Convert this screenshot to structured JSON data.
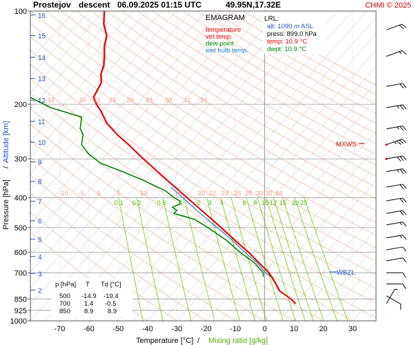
{
  "header": {
    "station": "Prostejov",
    "phase": "descent",
    "datetime": "06.09.2025 01:15 UTC",
    "location": "49.95N,17.32E",
    "credit": "CHMI © 2025"
  },
  "legend": {
    "title": "EMAGRAM",
    "items": [
      {
        "label": "temperature",
        "color": "#e00000"
      },
      {
        "label": "virt.temp.",
        "color": "#e00000"
      },
      {
        "label": "dew point",
        "color": "#008000"
      },
      {
        "label": "wet bulb temp.",
        "color": "#1e7fd0"
      }
    ]
  },
  "lrl": {
    "title": "LRL:",
    "alt": "alt: 1090 m ASL",
    "press": "press: 899.0 hPa",
    "temp": "temp: 10.9 °C",
    "dwpt": "dwpt: 10.9 °C"
  },
  "table": {
    "headers": [
      "p [hPa]",
      "T",
      "Td [°C]"
    ],
    "rows": [
      [
        "500",
        "-14.9",
        "-19.4"
      ],
      [
        "700",
        "1.4",
        "-0.5"
      ],
      [
        "850",
        "8.9",
        "8.9"
      ]
    ]
  },
  "markers": {
    "mxws": "MXWS",
    "wbzl": "WBZL"
  },
  "colors": {
    "temperature": "#e00000",
    "dewpoint": "#008000",
    "wetbulb": "#1e7fd0",
    "mixing": "#66cc00",
    "dryadiabat": "#f4b48c",
    "isotherm": "#c8c8f0",
    "isobar": "#9a9a9a"
  },
  "chart_data": {
    "type": "line",
    "title": "EMAGRAM",
    "xlabel": "Temperature [°C]",
    "xlabel2": "Mixing ratio [g/kg]",
    "ylabel": "Pressure [hPa]",
    "ylabel2": "Altitude [km]",
    "x_ticks": [
      "-70",
      "-60",
      "-50",
      "-40",
      "-30",
      "-20",
      "-10",
      "0",
      "10",
      "20",
      "30"
    ],
    "p_ticks": [
      "100",
      "200",
      "300",
      "400",
      "500",
      "600",
      "700",
      "850",
      "925",
      "1000"
    ],
    "alt_ticks": [
      "2",
      "3",
      "4",
      "5",
      "6",
      "7",
      "8",
      "9",
      "10",
      "11",
      "12",
      "13",
      "14",
      "15",
      "16"
    ],
    "mix_labels_lower": [
      "0.1",
      "0.2",
      "0.5",
      "1",
      "2",
      "3",
      "4",
      "6",
      "8",
      "10",
      "12",
      "15",
      "20",
      "25"
    ],
    "mix_labels_upper": [
      "-10",
      "-5",
      "0",
      "5",
      "10",
      "15",
      "20",
      "22",
      "24",
      "26",
      "28",
      "30",
      "32",
      "34"
    ],
    "dry_labels": [
      "15",
      "20",
      "22",
      "24",
      "26",
      "28",
      "30",
      "32",
      "34"
    ],
    "series": [
      {
        "name": "temperature",
        "points": [
          [
            880,
            10.5
          ],
          [
            850,
            8.9
          ],
          [
            800,
            5.0
          ],
          [
            750,
            3.4
          ],
          [
            700,
            1.4
          ],
          [
            650,
            -2.0
          ],
          [
            600,
            -5.6
          ],
          [
            550,
            -10.2
          ],
          [
            500,
            -14.9
          ],
          [
            450,
            -20.4
          ],
          [
            400,
            -26.6
          ],
          [
            350,
            -33.6
          ],
          [
            300,
            -41.5
          ],
          [
            270,
            -46.5
          ],
          [
            250,
            -50.5
          ],
          [
            230,
            -54.0
          ],
          [
            210,
            -56.0
          ],
          [
            200,
            -57.5
          ],
          [
            190,
            -58.5
          ],
          [
            170,
            -55.8
          ],
          [
            160,
            -56.0
          ],
          [
            150,
            -55.0
          ],
          [
            140,
            -54.8
          ],
          [
            130,
            -54.8
          ],
          [
            120,
            -54.0
          ],
          [
            110,
            -55.0
          ],
          [
            100,
            -54.8
          ]
        ]
      },
      {
        "name": "dew point",
        "points": [
          [
            720,
            -0.5
          ],
          [
            700,
            -0.5
          ],
          [
            650,
            -3.5
          ],
          [
            600,
            -8.5
          ],
          [
            550,
            -13.0
          ],
          [
            500,
            -19.4
          ],
          [
            470,
            -24.0
          ],
          [
            450,
            -31.0
          ],
          [
            440,
            -30.0
          ],
          [
            430,
            -31.5
          ],
          [
            420,
            -29.0
          ],
          [
            410,
            -29.0
          ],
          [
            400,
            -31.0
          ],
          [
            380,
            -34.0
          ],
          [
            350,
            -42.0
          ],
          [
            330,
            -48.5
          ],
          [
            310,
            -56.0
          ],
          [
            290,
            -60.0
          ],
          [
            270,
            -62.5
          ],
          [
            250,
            -62.0
          ],
          [
            240,
            -63.0
          ],
          [
            220,
            -62.5
          ],
          [
            205,
            -73.0
          ],
          [
            190,
            -80.0
          ],
          [
            180,
            -85.0
          ]
        ]
      },
      {
        "name": "wet bulb temp.",
        "points": [
          [
            720,
            2.0
          ],
          [
            700,
            0.3
          ],
          [
            650,
            -2.6
          ],
          [
            600,
            -6.8
          ],
          [
            550,
            -11.0
          ],
          [
            500,
            -16.2
          ],
          [
            450,
            -22.0
          ],
          [
            400,
            -28.0
          ],
          [
            370,
            -32.0
          ]
        ]
      }
    ],
    "xlim": [
      -80,
      38
    ],
    "ylim": [
      1000,
      100
    ]
  },
  "winds": [
    {
      "p": 115,
      "dir": 250,
      "kt": 20
    },
    {
      "p": 140,
      "dir": 250,
      "kt": 15
    },
    {
      "p": 175,
      "dir": 260,
      "kt": 20
    },
    {
      "p": 205,
      "dir": 260,
      "kt": 25
    },
    {
      "p": 240,
      "dir": 260,
      "kt": 25
    },
    {
      "p": 270,
      "dir": 250,
      "kt": 35
    },
    {
      "p": 300,
      "dir": 260,
      "kt": 30
    },
    {
      "p": 330,
      "dir": 260,
      "kt": 25
    },
    {
      "p": 370,
      "dir": 260,
      "kt": 20
    },
    {
      "p": 410,
      "dir": 260,
      "kt": 20
    },
    {
      "p": 450,
      "dir": 260,
      "kt": 20
    },
    {
      "p": 490,
      "dir": 260,
      "kt": 15
    },
    {
      "p": 540,
      "dir": 260,
      "kt": 15
    },
    {
      "p": 590,
      "dir": 260,
      "kt": 10
    },
    {
      "p": 640,
      "dir": 260,
      "kt": 10
    },
    {
      "p": 700,
      "dir": 270,
      "kt": 10
    },
    {
      "p": 760,
      "dir": 270,
      "kt": 10
    },
    {
      "p": 830,
      "dir": 300,
      "kt": 10
    },
    {
      "p": 880,
      "dir": 210,
      "kt": 5
    }
  ]
}
